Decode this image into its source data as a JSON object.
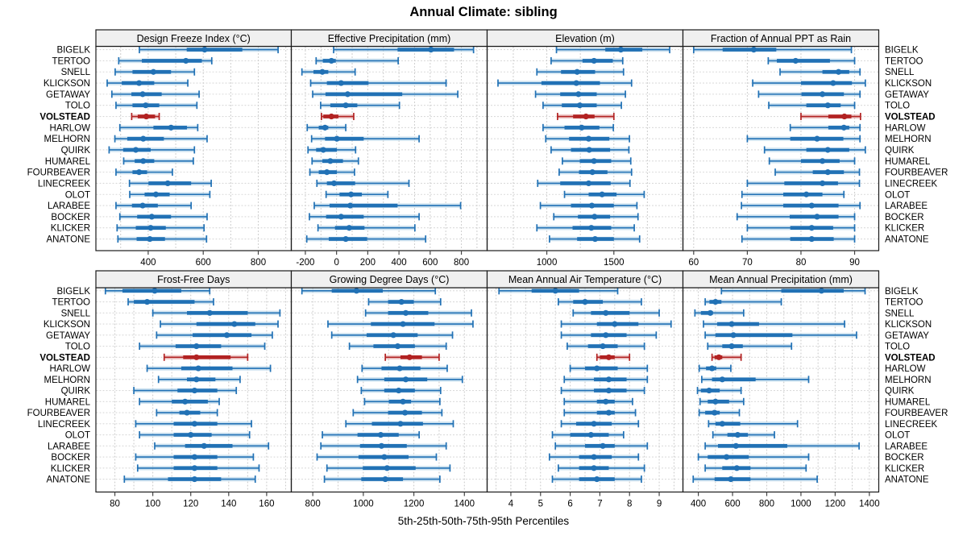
{
  "title": "Annual Climate: sibling",
  "footer": "5th-25th-50th-75th-95th Percentiles",
  "highlight_station": "VOLSTEAD",
  "colors": {
    "series_blue": "#2171b5",
    "series_blue_light": "#a8cce4",
    "highlight_red": "#b22222",
    "highlight_red_light": "#e2a3a3",
    "header_bg": "#f0f0f0",
    "panel_border": "#1a1a1a",
    "gridline": "#cccccc",
    "row_leader": "#d8d8d8",
    "text": "#000000"
  },
  "stations": [
    "BIGELK",
    "TERTOO",
    "SNELL",
    "KLICKSON",
    "GETAWAY",
    "TOLO",
    "VOLSTEAD",
    "HARLOW",
    "MELHORN",
    "QUIRK",
    "HUMAREL",
    "FOURBEAVER",
    "LINECREEK",
    "OLOT",
    "LARABEE",
    "BOCKER",
    "KLICKER",
    "ANATONE"
  ],
  "percentiles": [
    "5th",
    "25th",
    "50th",
    "75th",
    "95th"
  ],
  "chart_data": [
    {
      "type": "percentile-dotplot",
      "title": "Design Freeze Index (°C)",
      "xlim": [
        210,
        920
      ],
      "ticks": [
        400,
        600,
        800
      ],
      "grid_step": 100,
      "values": [
        [
          368,
          540,
          605,
          742,
          872
        ],
        [
          293,
          377,
          537,
          595,
          631
        ],
        [
          280,
          343,
          419,
          483,
          568
        ],
        [
          251,
          304,
          367,
          422,
          544
        ],
        [
          268,
          339,
          380,
          449,
          585
        ],
        [
          283,
          343,
          391,
          440,
          577
        ],
        [
          340,
          362,
          393,
          425,
          440
        ],
        [
          297,
          419,
          483,
          541,
          580
        ],
        [
          279,
          324,
          382,
          457,
          614
        ],
        [
          258,
          309,
          355,
          409,
          568
        ],
        [
          311,
          351,
          382,
          422,
          564
        ],
        [
          283,
          343,
          367,
          396,
          488
        ],
        [
          332,
          401,
          471,
          556,
          629
        ],
        [
          333,
          387,
          428,
          478,
          624
        ],
        [
          283,
          341,
          380,
          435,
          556
        ],
        [
          297,
          360,
          413,
          483,
          614
        ],
        [
          287,
          355,
          409,
          464,
          603
        ],
        [
          290,
          358,
          406,
          461,
          612
        ]
      ]
    },
    {
      "type": "percentile-dotplot",
      "title": "Effective Precipitation (mm)",
      "xlim": [
        -290,
        965
      ],
      "ticks": [
        -200,
        0,
        200,
        400,
        600,
        800
      ],
      "grid_step": 100,
      "values": [
        [
          -19,
          391,
          605,
          753,
          878
        ],
        [
          -131,
          -88,
          -33,
          -5,
          395
        ],
        [
          -222,
          -148,
          -91,
          -53,
          119
        ],
        [
          -166,
          -62,
          29,
          205,
          702
        ],
        [
          -153,
          -71,
          71,
          421,
          777
        ],
        [
          -102,
          -40,
          59,
          133,
          403
        ],
        [
          -97,
          -85,
          -33,
          12,
          110
        ],
        [
          -188,
          -114,
          -74,
          -53,
          59
        ],
        [
          -160,
          -74,
          2,
          174,
          529
        ],
        [
          -183,
          -131,
          -85,
          2,
          122
        ],
        [
          -157,
          -91,
          -40,
          41,
          140
        ],
        [
          -171,
          -114,
          -62,
          2,
          115
        ],
        [
          -126,
          -62,
          -16,
          119,
          464
        ],
        [
          -67,
          19,
          93,
          162,
          329
        ],
        [
          -143,
          -45,
          88,
          391,
          795
        ],
        [
          -174,
          -67,
          29,
          174,
          529
        ],
        [
          -119,
          -10,
          81,
          179,
          502
        ],
        [
          -191,
          -50,
          59,
          196,
          571
        ]
      ]
    },
    {
      "type": "percentile-dotplot",
      "title": "Elevation (m)",
      "xlim": [
        555,
        2015
      ],
      "ticks": [
        1000,
        1500
      ],
      "grid_step": 250,
      "values": [
        [
          1072,
          1436,
          1552,
          1712,
          1916
        ],
        [
          1032,
          1266,
          1352,
          1492,
          1566
        ],
        [
          926,
          1106,
          1226,
          1360,
          1572
        ],
        [
          636,
          960,
          1220,
          1396,
          1632
        ],
        [
          916,
          1100,
          1236,
          1372,
          1586
        ],
        [
          972,
          1112,
          1246,
          1372,
          1556
        ],
        [
          1080,
          1196,
          1292,
          1356,
          1500
        ],
        [
          972,
          1132,
          1260,
          1392,
          1496
        ],
        [
          992,
          1166,
          1312,
          1466,
          1616
        ],
        [
          1032,
          1180,
          1316,
          1472,
          1612
        ],
        [
          1116,
          1246,
          1352,
          1480,
          1626
        ],
        [
          1092,
          1240,
          1340,
          1452,
          1632
        ],
        [
          932,
          1100,
          1312,
          1476,
          1620
        ],
        [
          1132,
          1312,
          1412,
          1520,
          1726
        ],
        [
          952,
          1180,
          1336,
          1500,
          1672
        ],
        [
          1052,
          1232,
          1356,
          1472,
          1680
        ],
        [
          926,
          1192,
          1332,
          1480,
          1652
        ],
        [
          1020,
          1226,
          1360,
          1500,
          1692
        ]
      ]
    },
    {
      "type": "percentile-dotplot",
      "title": "Fraction of Annual PPT as Rain",
      "xlim": [
        58,
        94.5
      ],
      "ticks": [
        60,
        70,
        80,
        90
      ],
      "grid_step": 10,
      "values": [
        [
          60,
          65.4,
          71.2,
          75.4,
          89.4
        ],
        [
          73.9,
          75.5,
          79,
          85.4,
          90
        ],
        [
          76.1,
          84,
          87,
          89,
          91
        ],
        [
          71,
          80,
          86,
          89.5,
          92
        ],
        [
          72.1,
          80.1,
          84,
          88,
          91
        ],
        [
          74,
          81,
          85,
          87.4,
          90
        ],
        [
          80,
          85.1,
          88.1,
          89.4,
          91.1
        ],
        [
          78,
          85.1,
          88,
          89,
          91
        ],
        [
          70,
          78,
          83,
          87.9,
          91
        ],
        [
          73.2,
          81,
          85,
          89,
          92
        ],
        [
          74.1,
          80,
          84,
          87.2,
          90
        ],
        [
          75.2,
          82.2,
          85,
          88,
          90.9
        ],
        [
          70,
          76.9,
          84,
          86.9,
          90.9
        ],
        [
          69,
          76.7,
          81,
          84,
          88
        ],
        [
          68.9,
          76.7,
          82,
          87,
          91
        ],
        [
          68.1,
          77.9,
          83,
          87,
          90
        ],
        [
          70,
          78,
          82,
          86,
          90
        ],
        [
          69,
          78,
          82,
          86.1,
          90
        ]
      ]
    },
    {
      "type": "percentile-dotplot",
      "title": "Frost-Free Days",
      "xlim": [
        70,
        173
      ],
      "ticks": [
        80,
        100,
        120,
        140,
        160
      ],
      "grid_step": 10,
      "values": [
        [
          75,
          84,
          101,
          115,
          130
        ],
        [
          87,
          90,
          97,
          122,
          132
        ],
        [
          100,
          118,
          130,
          150,
          167
        ],
        [
          104,
          123,
          143,
          154,
          166
        ],
        [
          102,
          121,
          139,
          152,
          163
        ],
        [
          93,
          112,
          123,
          136,
          159
        ],
        [
          106,
          116,
          123,
          141,
          150
        ],
        [
          97,
          115,
          124,
          142,
          162
        ],
        [
          103,
          118,
          123,
          133,
          146
        ],
        [
          90,
          113,
          122,
          134,
          144
        ],
        [
          93,
          110,
          117,
          129,
          135
        ],
        [
          102,
          114,
          118,
          125,
          134
        ],
        [
          91,
          111,
          122,
          134,
          152
        ],
        [
          93,
          111,
          120,
          131,
          151
        ],
        [
          101,
          117,
          127,
          142,
          161
        ],
        [
          91,
          111,
          122,
          134,
          153
        ],
        [
          92,
          111,
          122,
          134,
          156
        ],
        [
          85,
          108,
          122,
          136,
          154
        ]
      ]
    },
    {
      "type": "percentile-dotplot",
      "title": "Growing Degree Days (°C)",
      "xlim": [
        715,
        1490
      ],
      "ticks": [
        800,
        1000,
        1200,
        1400
      ],
      "grid_step": 100,
      "values": [
        [
          757,
          875,
          973,
          1077,
          1285
        ],
        [
          1021,
          1098,
          1151,
          1200,
          1306
        ],
        [
          1009,
          1098,
          1168,
          1257,
          1428
        ],
        [
          860,
          1030,
          1157,
          1282,
          1434
        ],
        [
          875,
          1013,
          1119,
          1215,
          1353
        ],
        [
          945,
          1040,
          1136,
          1204,
          1328
        ],
        [
          1087,
          1147,
          1183,
          1232,
          1300
        ],
        [
          995,
          1072,
          1144,
          1226,
          1332
        ],
        [
          977,
          1083,
          1168,
          1253,
          1392
        ],
        [
          992,
          1083,
          1140,
          1204,
          1306
        ],
        [
          1005,
          1101,
          1157,
          1189,
          1303
        ],
        [
          960,
          1098,
          1165,
          1232,
          1311
        ],
        [
          931,
          1034,
          1147,
          1236,
          1356
        ],
        [
          838,
          977,
          1069,
          1140,
          1221
        ],
        [
          832,
          987,
          1072,
          1172,
          1328
        ],
        [
          817,
          981,
          1083,
          1179,
          1289
        ],
        [
          856,
          998,
          1094,
          1207,
          1343
        ],
        [
          846,
          992,
          1087,
          1157,
          1303
        ]
      ]
    },
    {
      "type": "percentile-dotplot",
      "title": "Mean Annual Air Temperature (°C)",
      "xlim": [
        3.2,
        9.8
      ],
      "ticks": [
        4,
        5,
        6,
        7,
        8,
        9
      ],
      "grid_step": 0.5,
      "values": [
        [
          3.6,
          4.7,
          5.5,
          6.3,
          7.6
        ],
        [
          5.6,
          6.1,
          6.5,
          7.1,
          8.4
        ],
        [
          6.1,
          6.7,
          7.2,
          8.0,
          9.0
        ],
        [
          5.7,
          6.9,
          7.5,
          8.3,
          9.4
        ],
        [
          5.7,
          6.7,
          7.2,
          7.9,
          8.9
        ],
        [
          5.9,
          6.6,
          7.1,
          7.6,
          8.5
        ],
        [
          6.9,
          7.0,
          7.3,
          7.5,
          8.0
        ],
        [
          6.0,
          6.5,
          6.9,
          7.6,
          8.6
        ],
        [
          5.8,
          6.8,
          7.3,
          7.9,
          8.6
        ],
        [
          5.7,
          6.8,
          7.3,
          7.9,
          8.5
        ],
        [
          5.8,
          6.9,
          7.2,
          7.5,
          8.1
        ],
        [
          5.8,
          6.9,
          7.3,
          7.5,
          8.2
        ],
        [
          5.7,
          6.2,
          6.8,
          7.4,
          8.3
        ],
        [
          5.4,
          6.0,
          6.7,
          7.3,
          7.8
        ],
        [
          5.5,
          6.5,
          7.1,
          7.5,
          8.6
        ],
        [
          5.3,
          6.3,
          6.8,
          7.4,
          8.3
        ],
        [
          5.6,
          6.3,
          6.8,
          7.3,
          8.5
        ],
        [
          5.4,
          6.3,
          6.9,
          7.5,
          8.4
        ]
      ]
    },
    {
      "type": "percentile-dotplot",
      "title": "Mean Annual Precipitation (mm)",
      "xlim": [
        310,
        1455
      ],
      "ticks": [
        400,
        600,
        800,
        1000,
        1200,
        1400
      ],
      "grid_step": 100,
      "values": [
        [
          535,
          885,
          1120,
          1250,
          1375
        ],
        [
          440,
          465,
          500,
          535,
          885
        ],
        [
          380,
          415,
          470,
          485,
          665
        ],
        [
          430,
          510,
          595,
          755,
          1255
        ],
        [
          440,
          500,
          605,
          950,
          1325
        ],
        [
          455,
          540,
          595,
          660,
          945
        ],
        [
          480,
          495,
          520,
          540,
          650
        ],
        [
          405,
          445,
          480,
          505,
          590
        ],
        [
          420,
          480,
          540,
          735,
          1045
        ],
        [
          395,
          415,
          463,
          525,
          650
        ],
        [
          410,
          455,
          500,
          580,
          665
        ],
        [
          405,
          440,
          495,
          525,
          640
        ],
        [
          460,
          500,
          540,
          645,
          980
        ],
        [
          485,
          570,
          630,
          690,
          845
        ],
        [
          440,
          515,
          620,
          920,
          1340
        ],
        [
          400,
          455,
          565,
          695,
          1045
        ],
        [
          440,
          540,
          625,
          705,
          1030
        ],
        [
          370,
          495,
          590,
          705,
          1095
        ]
      ]
    }
  ]
}
